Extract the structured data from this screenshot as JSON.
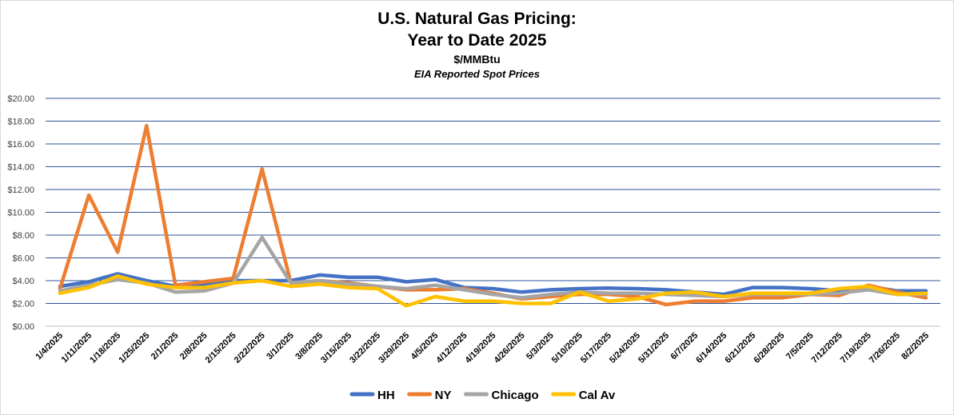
{
  "chart_data": {
    "type": "line",
    "title_line1": "U.S. Natural Gas Pricing:",
    "title_line2": "Year to Date 2025",
    "subtitle": "$/MMBtu",
    "note": "EIA Reported Spot Prices",
    "xlabel": "",
    "ylabel": "",
    "ylim": [
      0,
      20
    ],
    "yticks": [
      "$0.00",
      "$2.00",
      "$4.00",
      "$6.00",
      "$8.00",
      "$10.00",
      "$12.00",
      "$14.00",
      "$16.00",
      "$18.00",
      "$20.00"
    ],
    "grid": true,
    "legend_position": "bottom",
    "categories": [
      "1/4/2025",
      "1/11/2025",
      "1/18/2025",
      "1/25/2025",
      "2/1/2025",
      "2/8/2025",
      "2/15/2025",
      "2/22/2025",
      "3/1/2025",
      "3/8/2025",
      "3/15/2025",
      "3/22/2025",
      "3/29/2025",
      "4/5/2025",
      "4/12/2025",
      "4/19/2025",
      "4/26/2025",
      "5/3/2025",
      "5/10/2025",
      "5/17/2025",
      "5/24/2025",
      "5/31/2025",
      "6/7/2025",
      "6/14/2025",
      "6/21/2025",
      "6/28/2025",
      "7/5/2025",
      "7/12/2025",
      "7/19/2025",
      "7/26/2025",
      "8/2/2025"
    ],
    "series": [
      {
        "name": "HH",
        "color": "#4472C4",
        "values": [
          3.5,
          3.9,
          4.6,
          4.0,
          3.5,
          3.6,
          4.0,
          4.0,
          4.0,
          4.5,
          4.3,
          4.3,
          3.9,
          4.1,
          3.4,
          3.3,
          3.0,
          3.2,
          3.3,
          3.35,
          3.3,
          3.2,
          3.0,
          2.8,
          3.4,
          3.4,
          3.3,
          3.1,
          3.5,
          3.1,
          3.1
        ]
      },
      {
        "name": "NY",
        "color": "#ED7D31",
        "values": [
          3.3,
          11.5,
          6.5,
          17.6,
          3.6,
          3.9,
          4.2,
          13.8,
          3.8,
          4.0,
          3.8,
          3.5,
          3.2,
          3.2,
          3.3,
          2.9,
          2.4,
          2.6,
          2.8,
          2.8,
          2.6,
          1.9,
          2.2,
          2.2,
          2.5,
          2.5,
          2.8,
          2.7,
          3.6,
          3.0,
          2.5
        ]
      },
      {
        "name": "Chicago",
        "color": "#A5A5A5",
        "values": [
          3.1,
          3.6,
          4.1,
          3.8,
          3.0,
          3.1,
          3.8,
          7.8,
          3.8,
          4.0,
          3.7,
          3.5,
          3.3,
          3.6,
          3.2,
          2.8,
          2.5,
          2.8,
          3.0,
          2.9,
          2.9,
          2.8,
          2.7,
          2.6,
          2.8,
          2.8,
          2.8,
          2.9,
          3.2,
          2.8,
          2.8
        ]
      },
      {
        "name": "Cal Av",
        "color": "#FFC000",
        "values": [
          2.9,
          3.4,
          4.4,
          3.7,
          3.4,
          3.4,
          3.8,
          4.0,
          3.5,
          3.7,
          3.4,
          3.3,
          1.8,
          2.6,
          2.2,
          2.2,
          2.0,
          2.0,
          3.0,
          2.2,
          2.4,
          2.9,
          3.0,
          2.6,
          2.9,
          2.9,
          2.9,
          3.3,
          3.5,
          2.8,
          2.9
        ]
      }
    ]
  }
}
